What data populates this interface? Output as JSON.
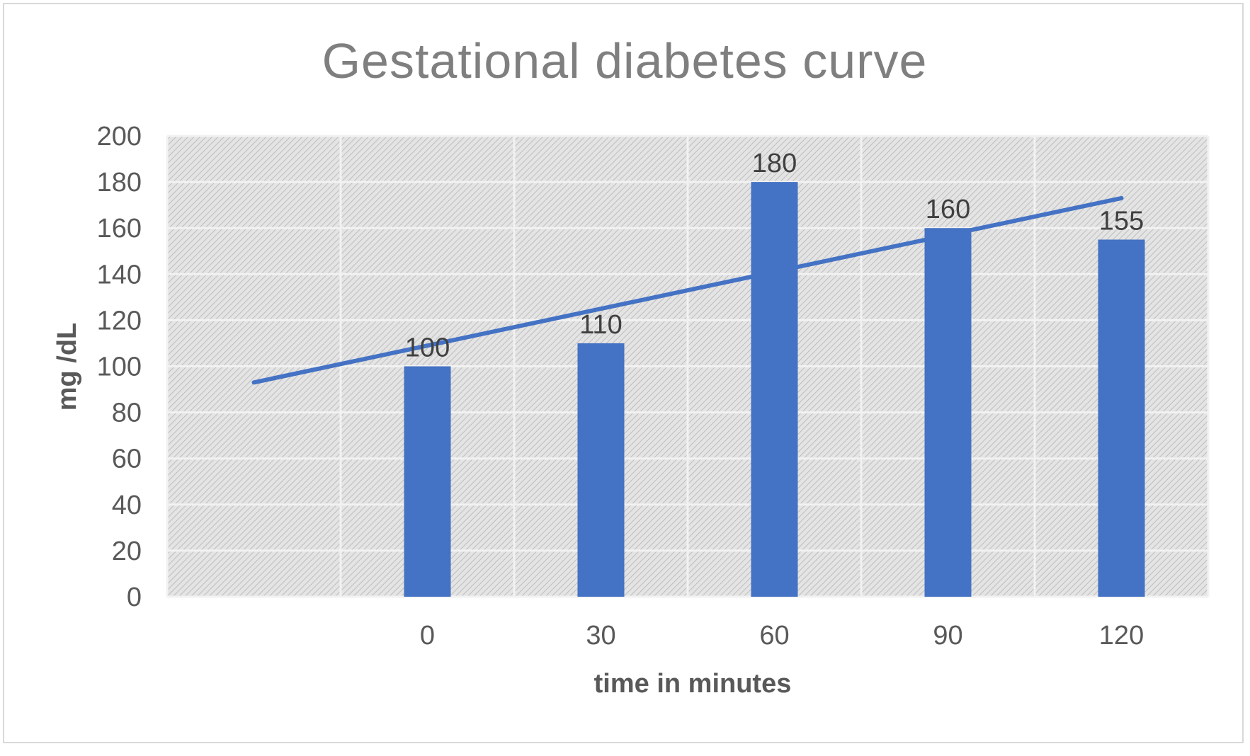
{
  "chart_data": {
    "type": "bar",
    "title": "Gestational diabetes curve",
    "xlabel": "time in minutes",
    "ylabel": "mg /dL",
    "categories": [
      "",
      "0",
      "30",
      "60",
      "90",
      "120"
    ],
    "values": [
      null,
      100,
      110,
      180,
      160,
      155
    ],
    "data_labels": [
      "",
      "100",
      "110",
      "180",
      "160",
      "155"
    ],
    "yticks": [
      "0",
      "20",
      "40",
      "60",
      "80",
      "100",
      "120",
      "140",
      "160",
      "180",
      "200"
    ],
    "ylim": [
      0,
      200
    ],
    "grid": true,
    "legend": "none",
    "trendline": {
      "type": "linear",
      "start": 93,
      "end": 173
    },
    "colors": {
      "bar": "#4472c4",
      "trendline": "#4472c4",
      "plot_bg": "#d9d9d9",
      "grid": "#f2f2f2"
    }
  }
}
